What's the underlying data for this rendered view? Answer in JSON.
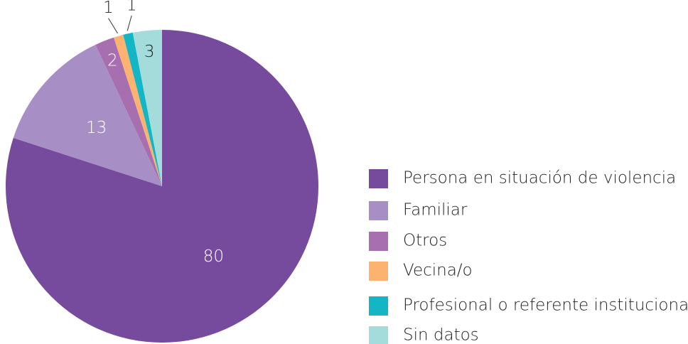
{
  "chart_data": {
    "type": "pie",
    "categories": [
      "Persona en situación de violencia",
      "Familiar",
      "Otros",
      "Vecina/o",
      "Profesional o referente institucional",
      "Sin datos"
    ],
    "values": [
      80,
      13,
      2,
      1,
      1,
      3
    ],
    "colors": [
      "#764a9c",
      "#a78fc6",
      "#a86fb0",
      "#fbb36f",
      "#14b5c5",
      "#a3dcdb"
    ],
    "legend": "right"
  }
}
